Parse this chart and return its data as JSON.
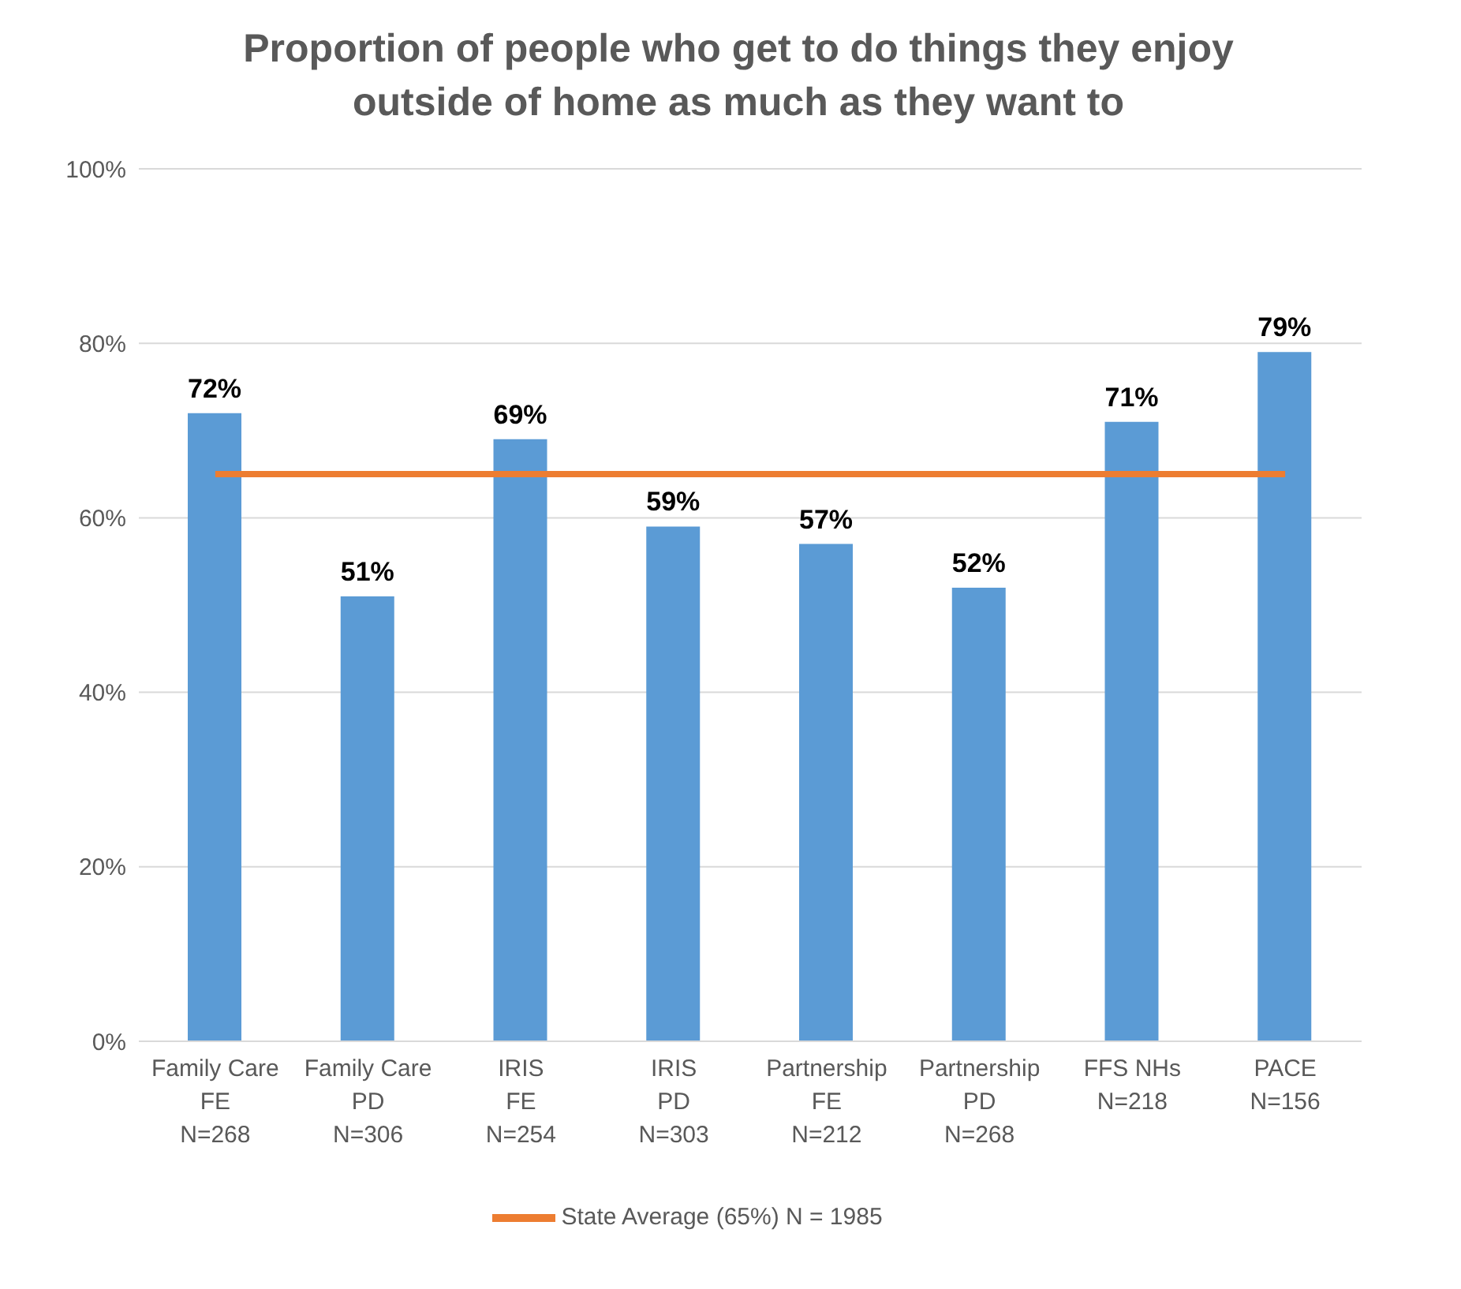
{
  "chart_data": {
    "type": "bar",
    "title": "Proportion of people who get to do things they enjoy outside of home as much as they want to",
    "categories": [
      "Family Care\nFE\nN=268",
      "Family Care\nPD\nN=306",
      "IRIS\nFE\nN=254",
      "IRIS\nPD\nN=303",
      "Partnership\nFE\nN=212",
      "Partnership\nPD\nN=268",
      "FFS NHs\nN=218",
      "PACE\nN=156"
    ],
    "series": [
      {
        "color": "#5b9bd5",
        "values": [
          72,
          51,
          69,
          59,
          57,
          52,
          71,
          79
        ],
        "value_labels": [
          "72%",
          "51%",
          "69%",
          "59%",
          "57%",
          "52%",
          "71%",
          "79%"
        ]
      },
      {
        "type": "line",
        "name": "State Average (65%) N = 1985",
        "color": "#ed7d31",
        "values": [
          65,
          65,
          65,
          65,
          65,
          65,
          65,
          65
        ]
      }
    ],
    "ylim": [
      0,
      100
    ],
    "yticks": [
      {
        "value": 0,
        "label": "0%"
      },
      {
        "value": 20,
        "label": "20%"
      },
      {
        "value": 40,
        "label": "40%"
      },
      {
        "value": 60,
        "label": "60%"
      },
      {
        "value": 80,
        "label": "80%"
      },
      {
        "value": 100,
        "label": "100%"
      }
    ],
    "grid": "y",
    "legend": "bottom"
  }
}
